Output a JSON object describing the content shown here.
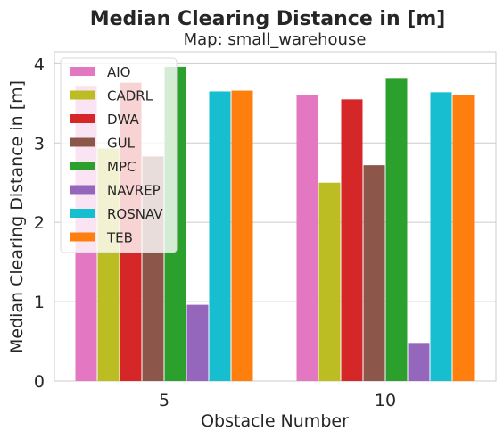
{
  "chart_data": {
    "type": "bar",
    "title": "Median Clearing Distance in [m]",
    "subtitle": "Map: small_warehouse",
    "xlabel": "Obstacle Number",
    "ylabel": "Median Clearing Distance in [m]",
    "categories": [
      "5",
      "10"
    ],
    "ylim": [
      0,
      4.15
    ],
    "yticks": [
      0,
      1,
      2,
      3,
      4
    ],
    "grid": true,
    "legend_position": "top-left",
    "series": [
      {
        "name": "AIO",
        "color": "#e377c2",
        "values": [
          3.72,
          3.61
        ]
      },
      {
        "name": "CADRL",
        "color": "#bcbd22",
        "values": [
          2.93,
          2.5
        ]
      },
      {
        "name": "DWA",
        "color": "#d62728",
        "values": [
          3.76,
          3.55
        ]
      },
      {
        "name": "GUL",
        "color": "#8c564b",
        "values": [
          2.83,
          2.72
        ]
      },
      {
        "name": "MPC",
        "color": "#2ca02c",
        "values": [
          3.96,
          3.82
        ]
      },
      {
        "name": "NAVREP",
        "color": "#9467bd",
        "values": [
          0.96,
          0.48
        ]
      },
      {
        "name": "ROSNAV",
        "color": "#17becf",
        "values": [
          3.65,
          3.64
        ]
      },
      {
        "name": "TEB",
        "color": "#ff7f0e",
        "values": [
          3.66,
          3.61
        ]
      }
    ]
  }
}
